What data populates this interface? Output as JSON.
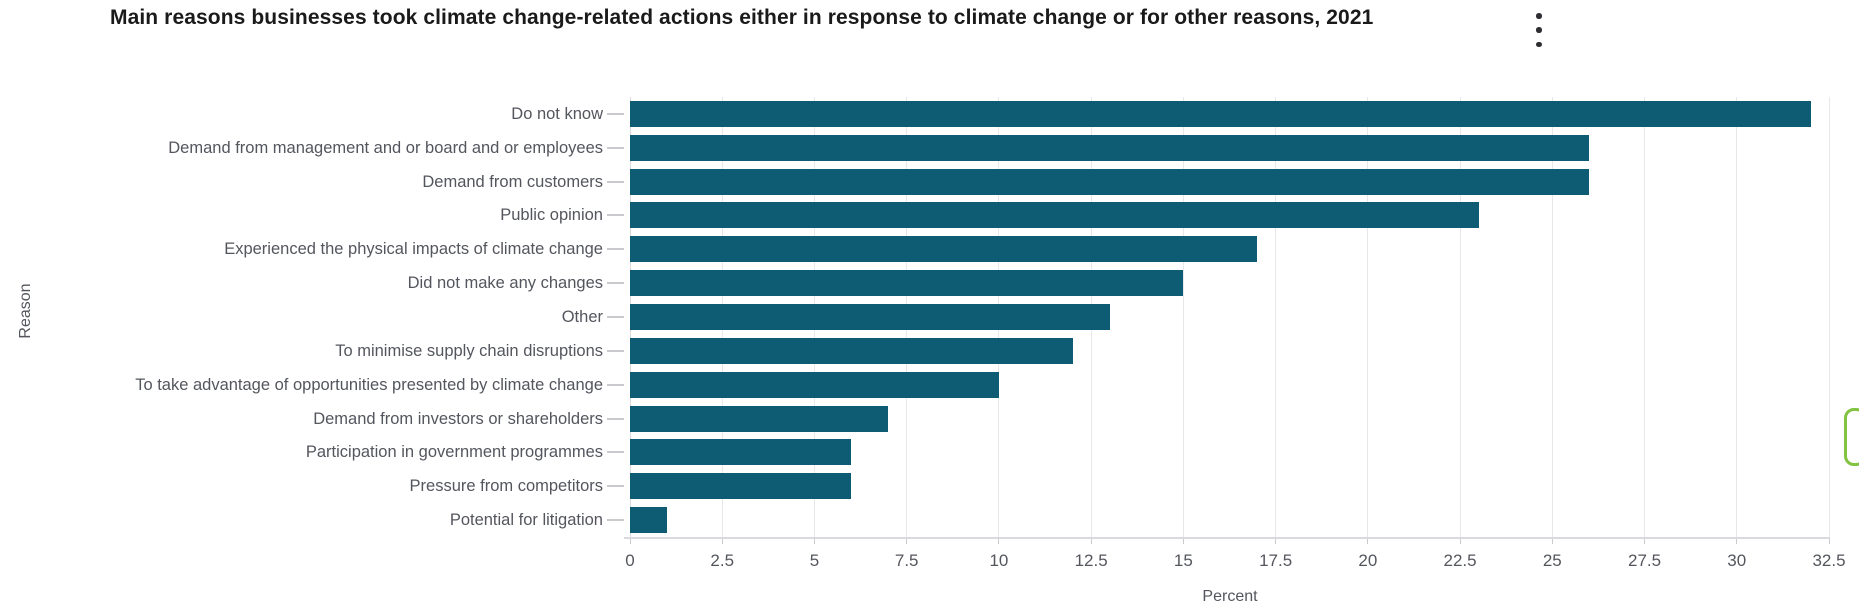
{
  "header": {
    "title": "Main reasons businesses took climate change-related actions either in response to climate change or for other reasons, 2021"
  },
  "chart_data": {
    "type": "bar",
    "orientation": "horizontal",
    "title": "Main reasons businesses took climate change-related actions either in response to climate change or for other reasons, 2021",
    "xlabel": "Percent",
    "ylabel": "Reason",
    "xlim": [
      0,
      32.5
    ],
    "xticks": [
      "0",
      "2.5",
      "5",
      "7.5",
      "10",
      "12.5",
      "15",
      "17.5",
      "20",
      "22.5",
      "25",
      "27.5",
      "30",
      "32.5"
    ],
    "grid": true,
    "legend": "none",
    "bar_color": "#0d5c73",
    "categories": [
      "Do not know",
      "Demand from management and or board and or employees",
      "Demand from customers",
      "Public opinion",
      "Experienced the physical impacts of climate change",
      "Did not make any changes",
      "Other",
      "To minimise supply chain disruptions",
      "To take advantage of opportunities presented by climate change",
      "Demand from investors or shareholders",
      "Participation in government programmes",
      "Pressure from competitors",
      "Potential for litigation"
    ],
    "values": [
      32,
      26,
      26,
      23,
      17,
      15,
      13,
      12,
      10,
      7,
      6,
      6,
      1
    ]
  },
  "icons": {
    "menu": "kebab-menu-icon",
    "side_widget_color": "#82c341"
  }
}
